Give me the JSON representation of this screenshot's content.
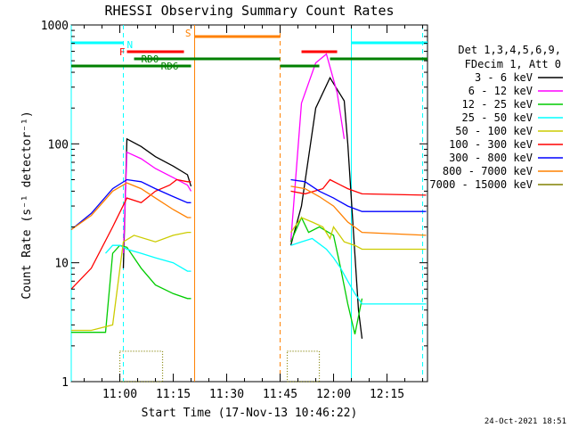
{
  "chart_data": {
    "type": "line",
    "title": "RHESSI Observing Summary Count Rates",
    "xlabel": "Start Time (17-Nov-13 10:46:22)",
    "ylabel": "Count Rate (s⁻¹ detector⁻¹)",
    "y_scale": "log",
    "ylim": [
      1,
      1000
    ],
    "xlim": [
      "10:46:22",
      "12:26:22"
    ],
    "x_ticks": [
      "11:00",
      "11:15",
      "11:30",
      "11:45",
      "12:00",
      "12:15"
    ],
    "y_ticks": [
      "1",
      "10",
      "100",
      "1000"
    ],
    "legend_header": [
      "Det 1,3,4,5,6,9,",
      "FDecim 1, Att 0"
    ],
    "legend_position": "right",
    "footer_date": "24-Oct-2021 18:51",
    "data_gaps": [
      [
        "11:20:30",
        "11:45:00"
      ]
    ],
    "series": [
      {
        "name": "3 - 6 keV",
        "color": "#000000",
        "x": [
          "11:01",
          "11:02",
          "11:06",
          "11:10",
          "11:15",
          "11:19",
          "11:20",
          "11:48",
          "11:51",
          "11:55",
          "11:59",
          "12:03",
          "12:04",
          "12:07",
          "12:08"
        ],
        "y": [
          9,
          110,
          95,
          78,
          65,
          55,
          44,
          14,
          30,
          200,
          360,
          230,
          100,
          4,
          2.3
        ]
      },
      {
        "name": "6 - 12 keV",
        "color": "#ff00ff",
        "x": [
          "11:01",
          "11:02",
          "11:06",
          "11:10",
          "11:15",
          "11:19",
          "11:20",
          "11:48",
          "11:51",
          "11:55",
          "11:58",
          "12:01",
          "12:03"
        ],
        "y": [
          12,
          85,
          75,
          62,
          52,
          45,
          40,
          15,
          220,
          480,
          570,
          270,
          110
        ]
      },
      {
        "name": "12 - 25 keV",
        "color": "#00cc00",
        "x": [
          "10:46:22",
          "10:56",
          "10:58",
          "11:00",
          "11:02",
          "11:06",
          "11:10",
          "11:15",
          "11:19",
          "11:20",
          "11:48",
          "11:51",
          "11:53",
          "11:56",
          "12:00",
          "12:02",
          "12:04",
          "12:06",
          "12:08"
        ],
        "y": [
          2.6,
          2.6,
          12,
          14,
          13.5,
          9,
          6.5,
          5.5,
          5,
          5,
          15,
          24,
          18,
          20,
          17,
          9,
          4.5,
          2.5,
          5
        ]
      },
      {
        "name": "25 - 50 keV",
        "color": "#00ffff",
        "x": [
          "10:56",
          "10:58",
          "11:00",
          "11:02",
          "11:06",
          "11:10",
          "11:15",
          "11:19",
          "11:20",
          "11:48",
          "11:51",
          "11:54",
          "11:58",
          "12:00",
          "12:02",
          "12:04",
          "12:06",
          "12:08",
          "12:26"
        ],
        "y": [
          12,
          14,
          14,
          13,
          12,
          11,
          10,
          8.5,
          8.5,
          14,
          15,
          16,
          13,
          11,
          9,
          7,
          5.5,
          4.5,
          4.5
        ]
      },
      {
        "name": "50 - 100 keV",
        "color": "#cccc00",
        "x": [
          "10:46:22",
          "10:52",
          "10:58",
          "11:01",
          "11:04",
          "11:10",
          "11:15",
          "11:19",
          "11:20",
          "11:48",
          "11:51",
          "11:54",
          "11:57",
          "11:59",
          "12:00",
          "12:03",
          "12:06",
          "12:08",
          "12:26"
        ],
        "y": [
          2.7,
          2.7,
          3,
          15,
          17,
          15,
          17,
          18,
          18,
          18,
          24,
          22,
          20,
          16,
          20,
          15,
          14,
          13,
          13
        ]
      },
      {
        "name": "100 - 300 keV",
        "color": "#ff0000",
        "x": [
          "10:46:22",
          "10:52",
          "10:58",
          "11:02",
          "11:06",
          "11:10",
          "11:14",
          "11:16",
          "11:19",
          "11:20",
          "11:48",
          "11:52",
          "11:57",
          "11:59",
          "12:04",
          "12:08",
          "12:26"
        ],
        "y": [
          6,
          9,
          20,
          35,
          32,
          40,
          45,
          50,
          48,
          48,
          40,
          38,
          42,
          50,
          42,
          38,
          37
        ]
      },
      {
        "name": "300 - 800 keV",
        "color": "#0000ff",
        "x": [
          "10:46:22",
          "10:52",
          "10:58",
          "11:02",
          "11:06",
          "11:10",
          "11:15",
          "11:19",
          "11:20",
          "11:48",
          "11:52",
          "11:56",
          "12:00",
          "12:04",
          "12:08",
          "12:26"
        ],
        "y": [
          19,
          26,
          42,
          50,
          48,
          42,
          36,
          32,
          32,
          50,
          48,
          40,
          35,
          30,
          27,
          27
        ]
      },
      {
        "name": "800 - 7000 keV",
        "color": "#ff8000",
        "x": [
          "10:46:22",
          "10:52",
          "10:58",
          "11:02",
          "11:06",
          "11:10",
          "11:15",
          "11:19",
          "11:20",
          "11:48",
          "11:52",
          "11:56",
          "12:00",
          "12:04",
          "12:08",
          "12:26"
        ],
        "y": [
          19,
          25,
          40,
          47,
          42,
          35,
          28,
          24,
          24,
          44,
          42,
          36,
          30,
          22,
          18,
          17
        ]
      },
      {
        "name": "7000 - 15000 keV",
        "color": "#808000",
        "x": [
          "11:00",
          "11:12",
          "11:47",
          "11:56"
        ],
        "y": [
          2,
          2,
          2,
          2
        ]
      }
    ],
    "state_bars": [
      {
        "label": "N",
        "color": "#00ffff",
        "level": 1,
        "segments": [
          [
            "10:46:22",
            "11:01"
          ],
          [
            "12:05",
            "12:26:22"
          ]
        ]
      },
      {
        "label": "S",
        "color": "#ff8000",
        "level": 0,
        "segments": [
          [
            "11:21",
            "11:45"
          ]
        ]
      },
      {
        "label": "F",
        "color": "#ff0000",
        "level": 2,
        "segments": [
          [
            "11:02",
            "11:18"
          ],
          [
            "11:51",
            "12:01"
          ]
        ]
      },
      {
        "label": "RD0",
        "color": "#008000",
        "level": 3,
        "segments": [
          [
            "11:04",
            "11:45"
          ],
          [
            "11:59",
            "12:26:22"
          ]
        ]
      },
      {
        "label": "RD6",
        "color": "#008000",
        "level": 4,
        "segments": [
          [
            "10:46:22",
            "11:20"
          ],
          [
            "11:45",
            "11:56"
          ]
        ]
      }
    ],
    "vertical_markers": [
      {
        "time": "10:46:22",
        "color": "#00ffff",
        "style": "solid"
      },
      {
        "time": "11:01",
        "color": "#00ffff",
        "style": "dashed"
      },
      {
        "time": "11:21",
        "color": "#ff8000",
        "style": "solid"
      },
      {
        "time": "11:45",
        "color": "#ff8000",
        "style": "dashed"
      },
      {
        "time": "12:05",
        "color": "#00ffff",
        "style": "solid"
      },
      {
        "time": "12:25",
        "color": "#00ffff",
        "style": "dashed"
      }
    ]
  }
}
